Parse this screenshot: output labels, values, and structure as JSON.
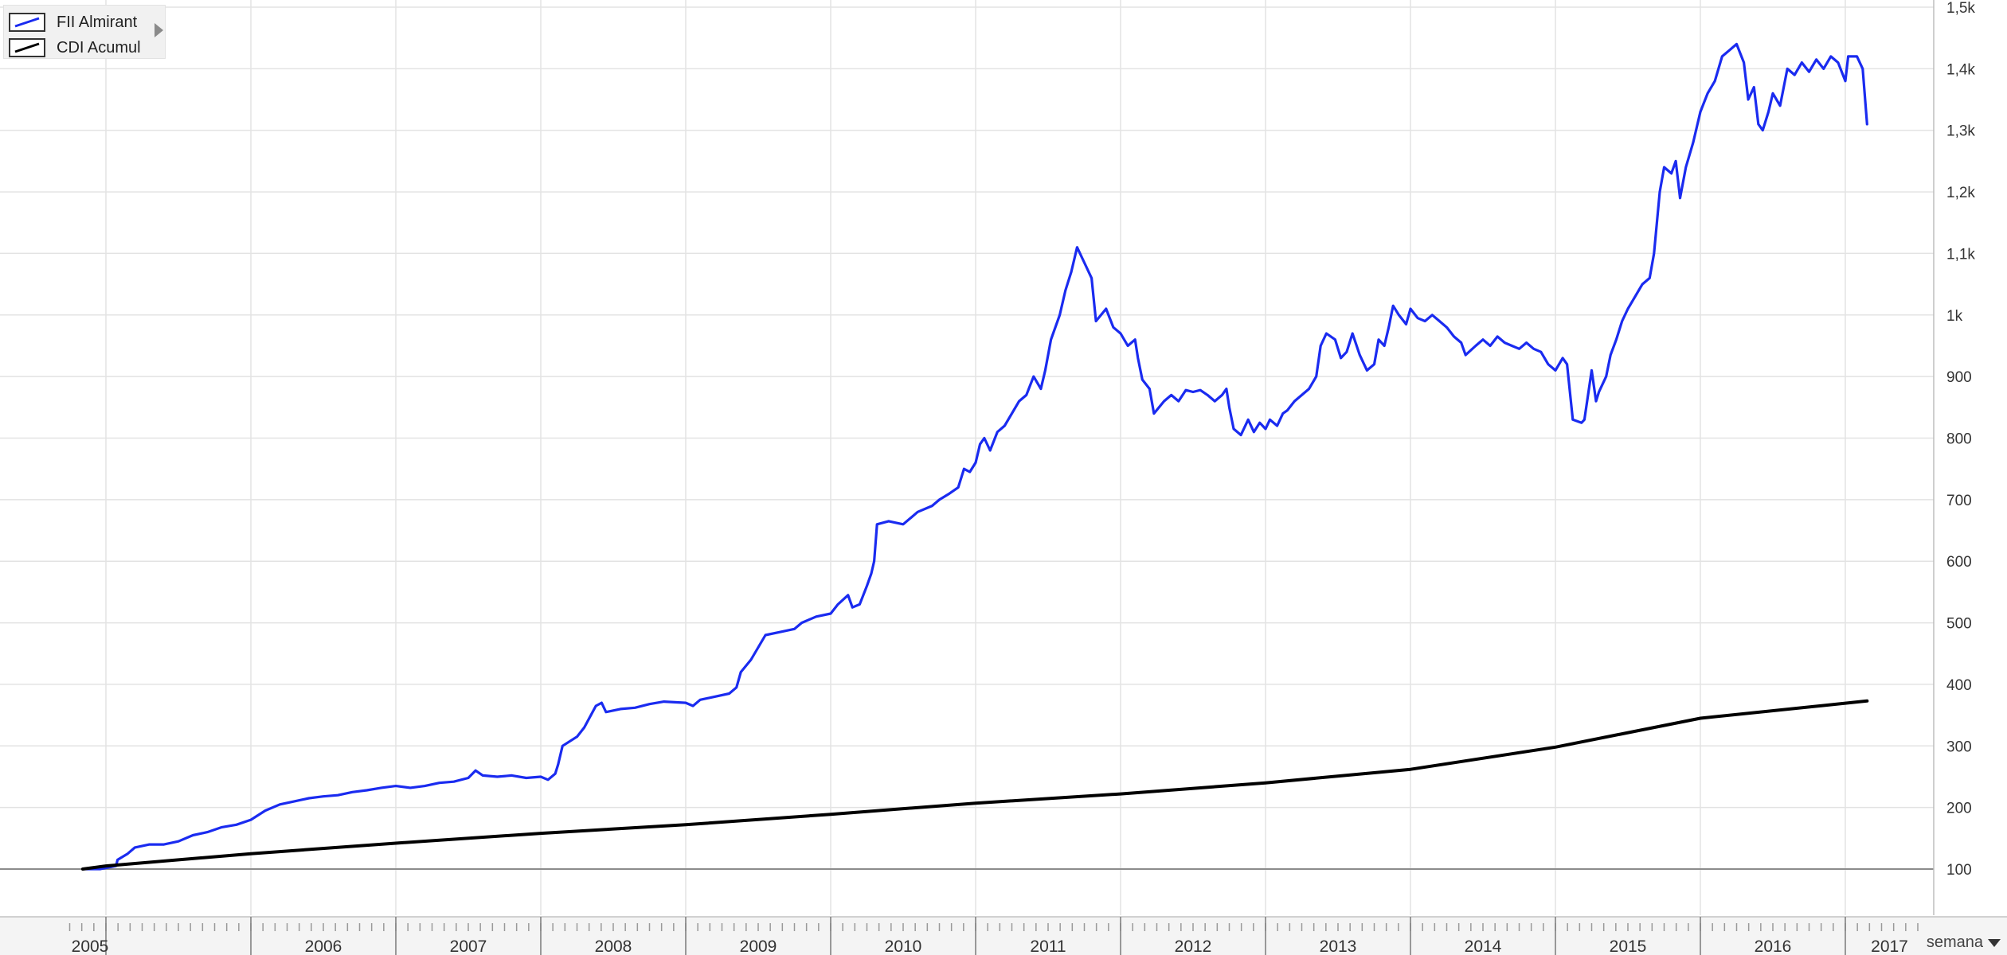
{
  "chart_data": {
    "type": "line",
    "y_unit_labels": [
      "100",
      "200",
      "300",
      "400",
      "500",
      "600",
      "700",
      "800",
      "900",
      "1k",
      "1,1k",
      "1,2k",
      "1,3k",
      "1,4k",
      "1,5k"
    ],
    "y_ticks": [
      100,
      200,
      300,
      400,
      500,
      600,
      700,
      800,
      900,
      1000,
      1100,
      1200,
      1300,
      1400,
      1500
    ],
    "ylim": [
      20,
      1500
    ],
    "xlim": [
      2004.88,
      2018.08
    ],
    "x_year_labels": [
      "2005",
      "2006",
      "2007",
      "2008",
      "2009",
      "2010",
      "2011",
      "2012",
      "2013",
      "2014",
      "2015",
      "2016",
      "2017"
    ],
    "x_year_starts": [
      2005,
      2006,
      2007,
      2008,
      2009,
      2010,
      2011,
      2012,
      2013,
      2014,
      2015,
      2016,
      2017
    ],
    "baseline": 100,
    "grid": true,
    "legend_position": "top-left",
    "series": [
      {
        "name": "FII Almirant",
        "color": "#1a2bf0",
        "points": [
          [
            2004.84,
            100
          ],
          [
            2004.96,
            100
          ],
          [
            2005.0,
            102
          ],
          [
            2005.07,
            105
          ],
          [
            2005.08,
            115
          ],
          [
            2005.15,
            125
          ],
          [
            2005.2,
            135
          ],
          [
            2005.3,
            140
          ],
          [
            2005.4,
            140
          ],
          [
            2005.5,
            145
          ],
          [
            2005.6,
            155
          ],
          [
            2005.7,
            160
          ],
          [
            2005.8,
            168
          ],
          [
            2005.9,
            172
          ],
          [
            2006.0,
            180
          ],
          [
            2006.1,
            195
          ],
          [
            2006.2,
            205
          ],
          [
            2006.3,
            210
          ],
          [
            2006.4,
            215
          ],
          [
            2006.5,
            218
          ],
          [
            2006.6,
            220
          ],
          [
            2006.7,
            225
          ],
          [
            2006.8,
            228
          ],
          [
            2006.9,
            232
          ],
          [
            2007.0,
            235
          ],
          [
            2007.1,
            232
          ],
          [
            2007.2,
            235
          ],
          [
            2007.3,
            240
          ],
          [
            2007.4,
            242
          ],
          [
            2007.5,
            248
          ],
          [
            2007.55,
            260
          ],
          [
            2007.6,
            252
          ],
          [
            2007.7,
            250
          ],
          [
            2007.8,
            252
          ],
          [
            2007.9,
            248
          ],
          [
            2008.0,
            250
          ],
          [
            2008.05,
            245
          ],
          [
            2008.1,
            255
          ],
          [
            2008.12,
            270
          ],
          [
            2008.15,
            300
          ],
          [
            2008.25,
            315
          ],
          [
            2008.3,
            330
          ],
          [
            2008.38,
            365
          ],
          [
            2008.42,
            370
          ],
          [
            2008.45,
            355
          ],
          [
            2008.55,
            360
          ],
          [
            2008.65,
            362
          ],
          [
            2008.75,
            368
          ],
          [
            2008.85,
            372
          ],
          [
            2009.0,
            370
          ],
          [
            2009.05,
            365
          ],
          [
            2009.1,
            375
          ],
          [
            2009.2,
            380
          ],
          [
            2009.3,
            385
          ],
          [
            2009.35,
            395
          ],
          [
            2009.38,
            420
          ],
          [
            2009.45,
            440
          ],
          [
            2009.5,
            460
          ],
          [
            2009.55,
            480
          ],
          [
            2009.65,
            485
          ],
          [
            2009.75,
            490
          ],
          [
            2009.8,
            500
          ],
          [
            2009.85,
            505
          ],
          [
            2009.9,
            510
          ],
          [
            2010.0,
            515
          ],
          [
            2010.05,
            530
          ],
          [
            2010.12,
            545
          ],
          [
            2010.15,
            525
          ],
          [
            2010.2,
            530
          ],
          [
            2010.25,
            560
          ],
          [
            2010.28,
            580
          ],
          [
            2010.3,
            600
          ],
          [
            2010.32,
            660
          ],
          [
            2010.4,
            665
          ],
          [
            2010.5,
            660
          ],
          [
            2010.55,
            670
          ],
          [
            2010.6,
            680
          ],
          [
            2010.7,
            690
          ],
          [
            2010.75,
            700
          ],
          [
            2010.82,
            710
          ],
          [
            2010.88,
            720
          ],
          [
            2010.92,
            750
          ],
          [
            2010.96,
            745
          ],
          [
            2011.0,
            760
          ],
          [
            2011.03,
            790
          ],
          [
            2011.06,
            800
          ],
          [
            2011.1,
            780
          ],
          [
            2011.15,
            810
          ],
          [
            2011.2,
            820
          ],
          [
            2011.25,
            840
          ],
          [
            2011.3,
            860
          ],
          [
            2011.35,
            870
          ],
          [
            2011.4,
            900
          ],
          [
            2011.45,
            880
          ],
          [
            2011.48,
            910
          ],
          [
            2011.52,
            960
          ],
          [
            2011.58,
            1000
          ],
          [
            2011.62,
            1040
          ],
          [
            2011.66,
            1070
          ],
          [
            2011.7,
            1110
          ],
          [
            2011.75,
            1085
          ],
          [
            2011.8,
            1060
          ],
          [
            2011.83,
            990
          ],
          [
            2011.9,
            1010
          ],
          [
            2011.95,
            980
          ],
          [
            2012.0,
            970
          ],
          [
            2012.05,
            950
          ],
          [
            2012.1,
            960
          ],
          [
            2012.12,
            930
          ],
          [
            2012.15,
            895
          ],
          [
            2012.2,
            880
          ],
          [
            2012.23,
            840
          ],
          [
            2012.3,
            860
          ],
          [
            2012.35,
            870
          ],
          [
            2012.4,
            860
          ],
          [
            2012.45,
            878
          ],
          [
            2012.5,
            875
          ],
          [
            2012.55,
            878
          ],
          [
            2012.6,
            870
          ],
          [
            2012.65,
            860
          ],
          [
            2012.7,
            870
          ],
          [
            2012.73,
            880
          ],
          [
            2012.75,
            850
          ],
          [
            2012.78,
            815
          ],
          [
            2012.83,
            805
          ],
          [
            2012.88,
            830
          ],
          [
            2012.92,
            810
          ],
          [
            2012.96,
            825
          ],
          [
            2013.0,
            815
          ],
          [
            2013.03,
            830
          ],
          [
            2013.08,
            820
          ],
          [
            2013.12,
            840
          ],
          [
            2013.15,
            845
          ],
          [
            2013.2,
            860
          ],
          [
            2013.25,
            870
          ],
          [
            2013.3,
            880
          ],
          [
            2013.35,
            900
          ],
          [
            2013.38,
            950
          ],
          [
            2013.42,
            970
          ],
          [
            2013.48,
            960
          ],
          [
            2013.52,
            930
          ],
          [
            2013.56,
            940
          ],
          [
            2013.6,
            970
          ],
          [
            2013.65,
            935
          ],
          [
            2013.7,
            910
          ],
          [
            2013.75,
            920
          ],
          [
            2013.78,
            960
          ],
          [
            2013.82,
            950
          ],
          [
            2013.85,
            980
          ],
          [
            2013.88,
            1015
          ],
          [
            2013.92,
            1000
          ],
          [
            2013.97,
            985
          ],
          [
            2014.0,
            1010
          ],
          [
            2014.05,
            995
          ],
          [
            2014.1,
            990
          ],
          [
            2014.15,
            1000
          ],
          [
            2014.2,
            990
          ],
          [
            2014.25,
            980
          ],
          [
            2014.3,
            965
          ],
          [
            2014.35,
            955
          ],
          [
            2014.38,
            935
          ],
          [
            2014.45,
            950
          ],
          [
            2014.5,
            960
          ],
          [
            2014.55,
            950
          ],
          [
            2014.6,
            965
          ],
          [
            2014.65,
            955
          ],
          [
            2014.7,
            950
          ],
          [
            2014.75,
            945
          ],
          [
            2014.8,
            955
          ],
          [
            2014.85,
            945
          ],
          [
            2014.9,
            940
          ],
          [
            2014.95,
            920
          ],
          [
            2015.0,
            910
          ],
          [
            2015.05,
            930
          ],
          [
            2015.08,
            920
          ],
          [
            2015.12,
            830
          ],
          [
            2015.18,
            825
          ],
          [
            2015.2,
            830
          ],
          [
            2015.25,
            910
          ],
          [
            2015.28,
            860
          ],
          [
            2015.3,
            875
          ],
          [
            2015.35,
            900
          ],
          [
            2015.38,
            935
          ],
          [
            2015.42,
            960
          ],
          [
            2015.46,
            990
          ],
          [
            2015.5,
            1010
          ],
          [
            2015.55,
            1030
          ],
          [
            2015.6,
            1050
          ],
          [
            2015.65,
            1060
          ],
          [
            2015.68,
            1100
          ],
          [
            2015.72,
            1200
          ],
          [
            2015.75,
            1240
          ],
          [
            2015.8,
            1230
          ],
          [
            2015.83,
            1250
          ],
          [
            2015.86,
            1190
          ],
          [
            2015.9,
            1240
          ],
          [
            2015.95,
            1280
          ],
          [
            2016.0,
            1330
          ],
          [
            2016.05,
            1360
          ],
          [
            2016.1,
            1380
          ],
          [
            2016.15,
            1420
          ],
          [
            2016.2,
            1430
          ],
          [
            2016.25,
            1440
          ],
          [
            2016.3,
            1410
          ],
          [
            2016.33,
            1350
          ],
          [
            2016.37,
            1370
          ],
          [
            2016.4,
            1310
          ],
          [
            2016.43,
            1300
          ],
          [
            2016.47,
            1330
          ],
          [
            2016.5,
            1360
          ],
          [
            2016.55,
            1340
          ],
          [
            2016.6,
            1400
          ],
          [
            2016.65,
            1390
          ],
          [
            2016.7,
            1410
          ],
          [
            2016.75,
            1395
          ],
          [
            2016.8,
            1415
          ],
          [
            2016.85,
            1400
          ],
          [
            2016.9,
            1420
          ],
          [
            2016.95,
            1410
          ],
          [
            2017.0,
            1380
          ],
          [
            2017.02,
            1420
          ],
          [
            2017.08,
            1420
          ],
          [
            2017.12,
            1400
          ],
          [
            2017.15,
            1310
          ]
        ]
      },
      {
        "name": "CDI Acumul",
        "color": "#000000",
        "points": [
          [
            2004.84,
            100
          ],
          [
            2005.0,
            105
          ],
          [
            2006.0,
            125
          ],
          [
            2007.0,
            142
          ],
          [
            2008.0,
            158
          ],
          [
            2009.0,
            172
          ],
          [
            2010.0,
            189
          ],
          [
            2011.0,
            207
          ],
          [
            2012.0,
            222
          ],
          [
            2013.0,
            240
          ],
          [
            2014.0,
            262
          ],
          [
            2015.0,
            298
          ],
          [
            2016.0,
            345
          ],
          [
            2017.15,
            373
          ]
        ]
      }
    ]
  },
  "legend": {
    "items": [
      {
        "label": "FII Almirant",
        "color": "#1a2bf0"
      },
      {
        "label": "CDI Acumul",
        "color": "#000000"
      }
    ]
  },
  "period_selector": {
    "label": "semana"
  }
}
